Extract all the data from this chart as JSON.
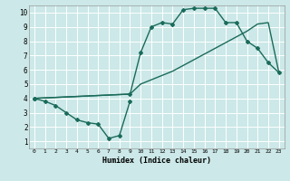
{
  "xlabel": "Humidex (Indice chaleur)",
  "xlim": [
    -0.5,
    23.5
  ],
  "ylim": [
    0.5,
    10.5
  ],
  "yticks": [
    1,
    2,
    3,
    4,
    5,
    6,
    7,
    8,
    9,
    10
  ],
  "xticks": [
    0,
    1,
    2,
    3,
    4,
    5,
    6,
    7,
    8,
    9,
    10,
    11,
    12,
    13,
    14,
    15,
    16,
    17,
    18,
    19,
    20,
    21,
    22,
    23
  ],
  "background_color": "#cce8e8",
  "grid_color": "#ffffff",
  "line_color": "#1a6b5a",
  "line1": {
    "x": [
      0,
      1,
      2,
      3,
      4,
      5,
      6,
      7,
      8,
      9
    ],
    "y": [
      4.0,
      3.8,
      3.5,
      3.0,
      2.5,
      2.3,
      2.2,
      1.2,
      1.4,
      3.8
    ],
    "has_markers": true
  },
  "line2": {
    "x": [
      0,
      9,
      10,
      11,
      12,
      13,
      14,
      15,
      16,
      17,
      18,
      19,
      20,
      21,
      22,
      23
    ],
    "y": [
      4.0,
      4.3,
      7.2,
      9.0,
      9.3,
      9.2,
      10.2,
      10.3,
      10.3,
      10.3,
      9.3,
      9.3,
      8.0,
      7.5,
      6.5,
      5.8
    ],
    "has_markers": true
  },
  "line3": {
    "x": [
      0,
      9,
      10,
      11,
      12,
      13,
      14,
      15,
      16,
      17,
      18,
      19,
      20,
      21,
      22,
      23
    ],
    "y": [
      4.0,
      4.3,
      5.0,
      5.3,
      5.6,
      5.9,
      6.3,
      6.7,
      7.1,
      7.5,
      7.9,
      8.3,
      8.7,
      9.2,
      9.3,
      5.8
    ],
    "has_markers": false
  }
}
